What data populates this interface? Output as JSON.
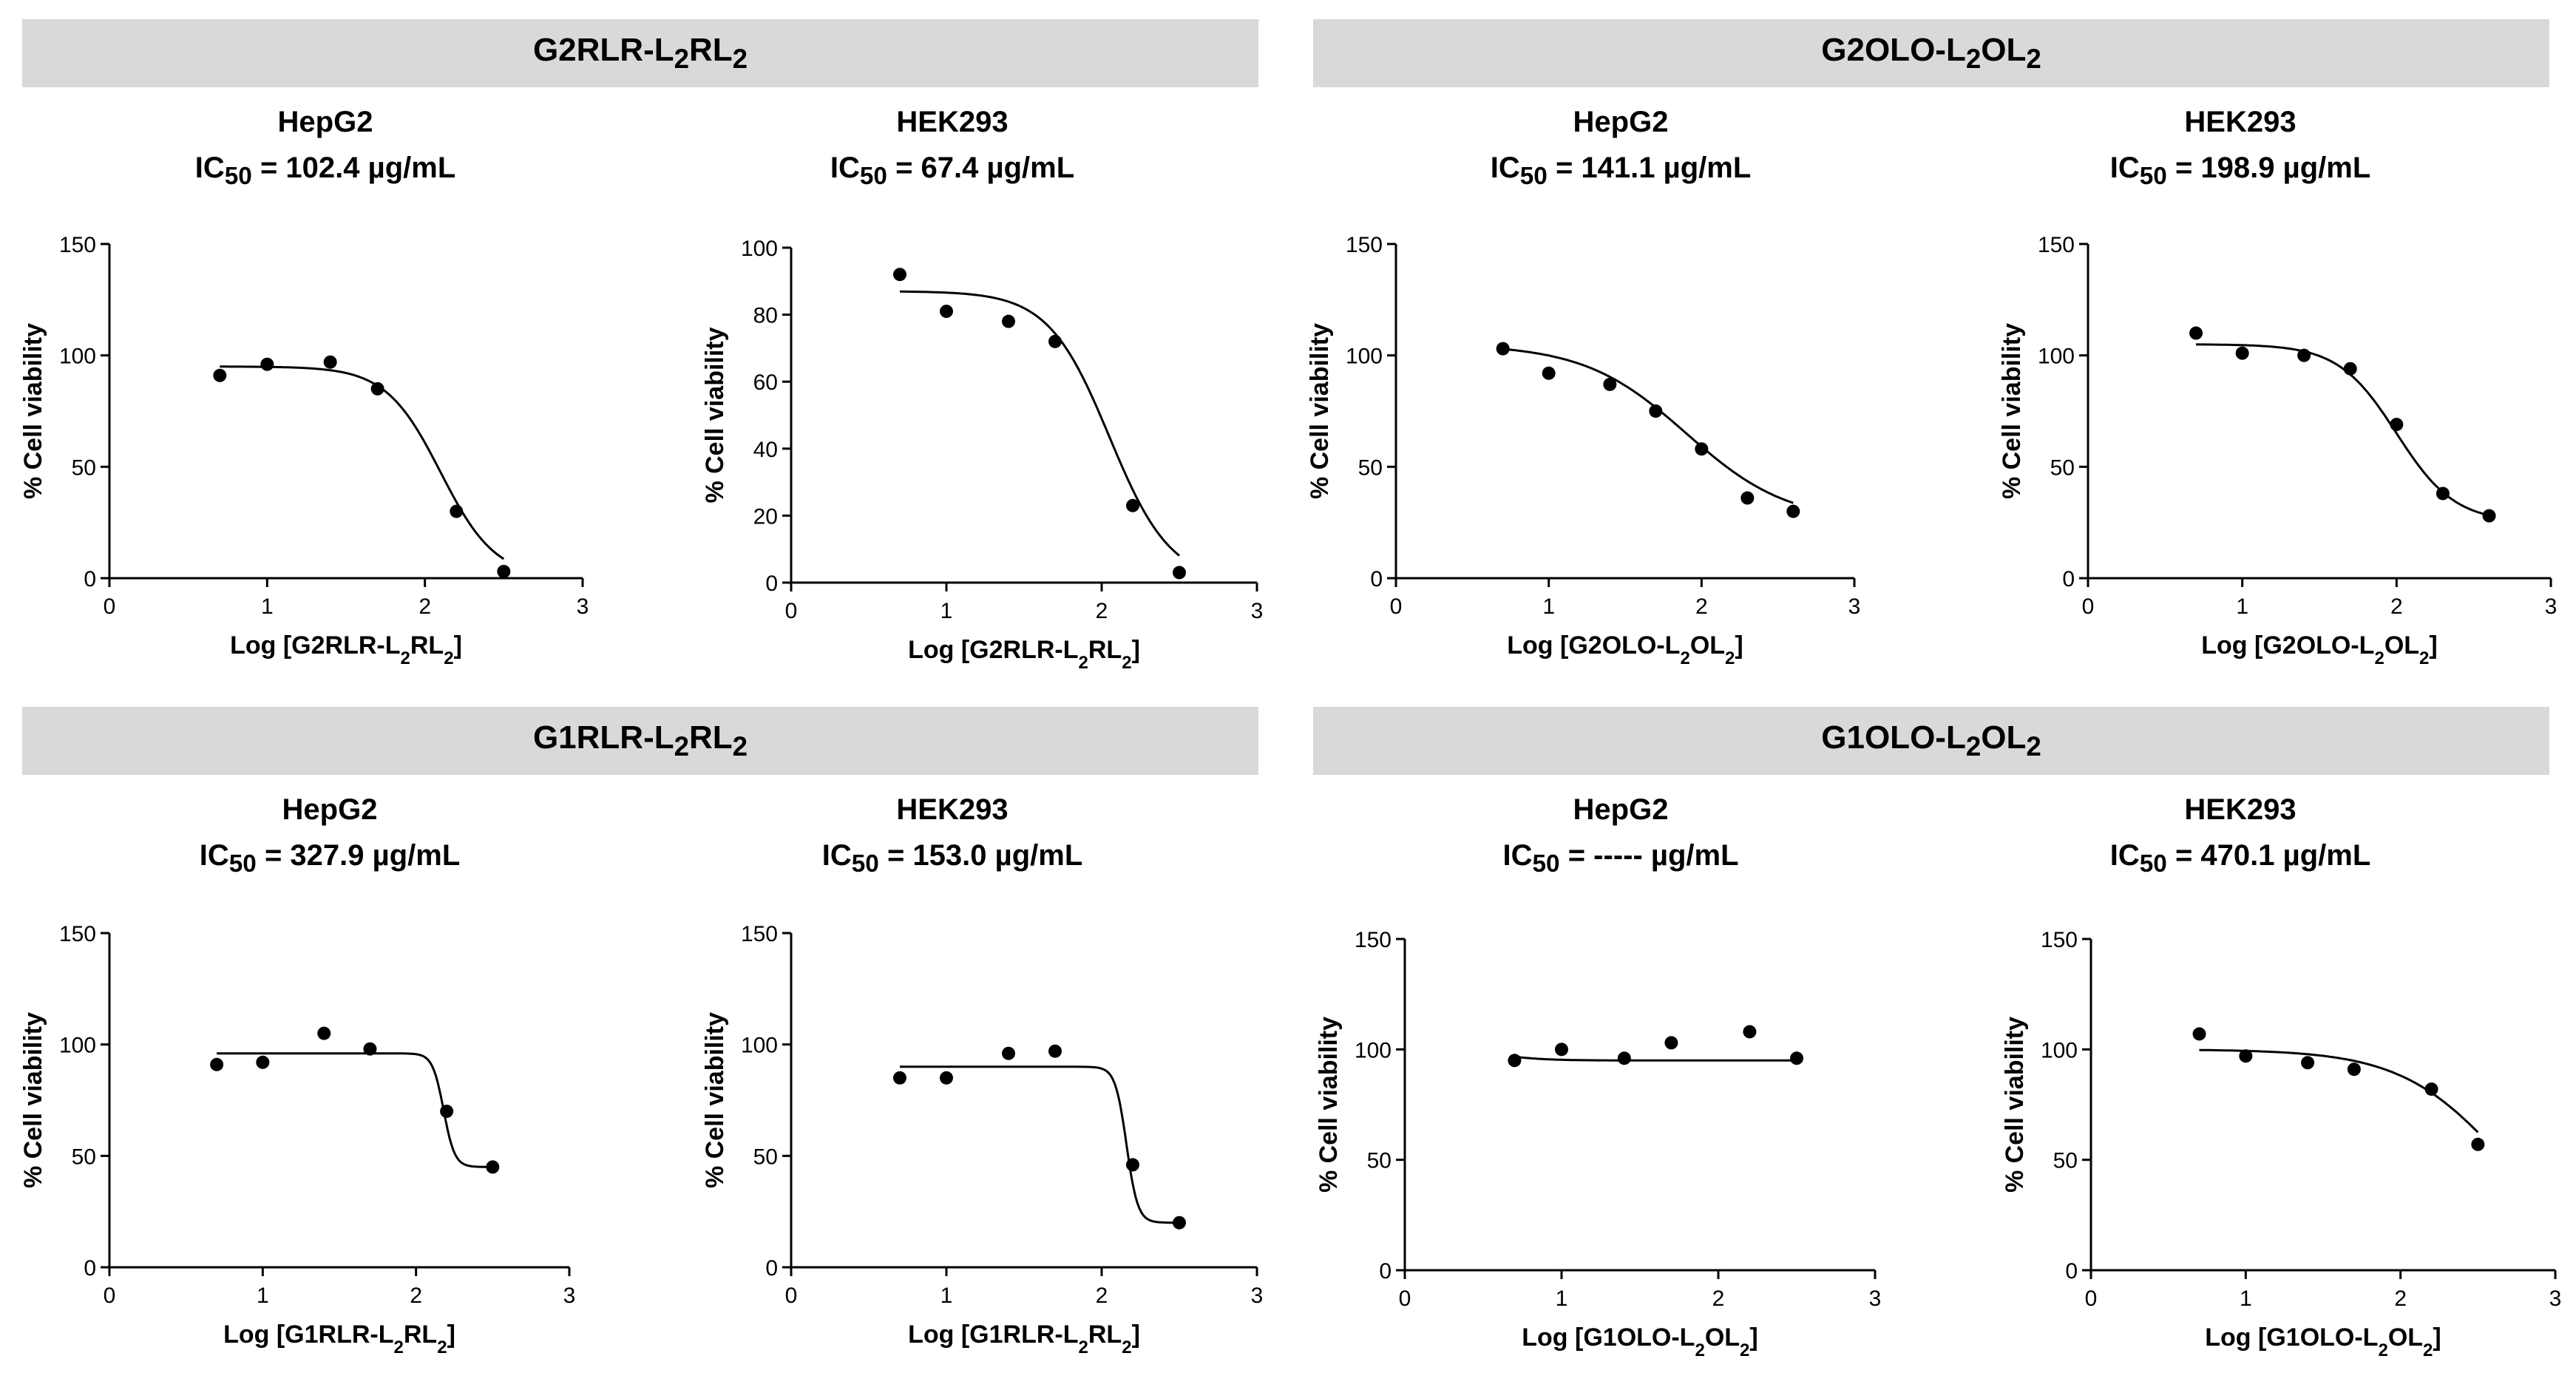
{
  "groups": [
    {
      "label_main": "G2RLR-L",
      "sub1": "2",
      "label_mid": "RL",
      "sub2": "2"
    },
    {
      "label_main": "G2OLO-L",
      "sub1": "2",
      "label_mid": "OL",
      "sub2": "2"
    },
    {
      "label_main": "G1RLR-L",
      "sub1": "2",
      "label_mid": "RL",
      "sub2": "2"
    },
    {
      "label_main": "G1OLO-L",
      "sub1": "2",
      "label_mid": "OL",
      "sub2": "2"
    }
  ],
  "chart_data": [
    {
      "type": "scatter",
      "cell": "HepG2",
      "ic50_value": "102.4",
      "ic50_unit": "µg/mL",
      "ic50_prefix": "IC",
      "ic50_sub": "50",
      "ic50_eq": " = ",
      "ylabel": "% Cell viability",
      "xlabel_main": "Log [G2RLR-L",
      "xlabel_sub1": "2",
      "xlabel_mid": "RL",
      "xlabel_sub2": "2",
      "xlabel_end": "]",
      "xlim": [
        0,
        3
      ],
      "ylim": [
        0,
        150
      ],
      "yticks": [
        0,
        50,
        100,
        150
      ],
      "xticks": [
        0,
        1,
        2,
        3
      ],
      "x": [
        0.7,
        1.0,
        1.4,
        1.7,
        2.2,
        2.5
      ],
      "y": [
        91,
        96,
        97,
        85,
        30,
        3
      ],
      "fit": {
        "top": 95,
        "bottom": 0,
        "logic50": 2.1,
        "hill": -2.5
      }
    },
    {
      "type": "scatter",
      "cell": "HEK293",
      "ic50_value": "67.4",
      "ic50_unit": "µg/mL",
      "ic50_prefix": "IC",
      "ic50_sub": "50",
      "ic50_eq": " = ",
      "ylabel": "% Cell viability",
      "xlabel_main": "Log [G2RLR-L",
      "xlabel_sub1": "2",
      "xlabel_mid": "RL",
      "xlabel_sub2": "2",
      "xlabel_end": "]",
      "xlim": [
        0,
        3
      ],
      "ylim": [
        0,
        100
      ],
      "yticks": [
        0,
        20,
        40,
        60,
        80,
        100
      ],
      "xticks": [
        0,
        1,
        2,
        3
      ],
      "x": [
        0.7,
        1.0,
        1.4,
        1.7,
        2.2,
        2.5
      ],
      "y": [
        92,
        81,
        78,
        72,
        23,
        3
      ],
      "fit": {
        "top": 87,
        "bottom": 0,
        "logic50": 2.05,
        "hill": -2.2
      }
    },
    {
      "type": "scatter",
      "cell": "HepG2",
      "ic50_value": "141.1",
      "ic50_unit": "µg/mL",
      "ic50_prefix": "IC",
      "ic50_sub": "50",
      "ic50_eq": " = ",
      "ylabel": "% Cell viability",
      "xlabel_main": "Log [G2OLO-L",
      "xlabel_sub1": "2",
      "xlabel_mid": "OL",
      "xlabel_sub2": "2",
      "xlabel_end": "]",
      "xlim": [
        0,
        3
      ],
      "ylim": [
        0,
        150
      ],
      "yticks": [
        0,
        50,
        100,
        150
      ],
      "xticks": [
        0,
        1,
        2,
        3
      ],
      "x": [
        0.7,
        1.0,
        1.4,
        1.7,
        2.0,
        2.3,
        2.6
      ],
      "y": [
        103,
        92,
        87,
        75,
        58,
        36,
        30
      ],
      "fit": {
        "top": 105,
        "bottom": 25,
        "logic50": 1.9,
        "hill": -1.3
      }
    },
    {
      "type": "scatter",
      "cell": "HEK293",
      "ic50_value": "198.9",
      "ic50_unit": "µg/mL",
      "ic50_prefix": "IC",
      "ic50_sub": "50",
      "ic50_eq": " = ",
      "ylabel": "% Cell viability",
      "xlabel_main": "Log [G2OLO-L",
      "xlabel_sub1": "2",
      "xlabel_mid": "OL",
      "xlabel_sub2": "2",
      "xlabel_end": "]",
      "xlim": [
        0,
        3
      ],
      "ylim": [
        0,
        150
      ],
      "yticks": [
        0,
        50,
        100,
        150
      ],
      "xticks": [
        0,
        1,
        2,
        3
      ],
      "x": [
        0.7,
        1.0,
        1.4,
        1.7,
        2.0,
        2.3,
        2.6
      ],
      "y": [
        110,
        101,
        100,
        94,
        69,
        38,
        28
      ],
      "fit": {
        "top": 105,
        "bottom": 25,
        "logic50": 2.0,
        "hill": -2.3
      }
    },
    {
      "type": "scatter",
      "cell": "HepG2",
      "ic50_value": "327.9",
      "ic50_unit": "µg/mL",
      "ic50_prefix": "IC",
      "ic50_sub": "50",
      "ic50_eq": " = ",
      "ylabel": "% Cell viability",
      "xlabel_main": "Log [G1RLR-L",
      "xlabel_sub1": "2",
      "xlabel_mid": "RL",
      "xlabel_sub2": "2",
      "xlabel_end": "]",
      "xlim": [
        0,
        3
      ],
      "ylim": [
        0,
        150
      ],
      "yticks": [
        0,
        50,
        100,
        150
      ],
      "xticks": [
        0,
        1,
        2,
        3
      ],
      "x": [
        0.7,
        1.0,
        1.4,
        1.7,
        2.2,
        2.5
      ],
      "y": [
        91,
        92,
        105,
        98,
        70,
        45
      ],
      "fit": {
        "top": 96,
        "bottom": 45,
        "logic50": 2.18,
        "hill": -12
      }
    },
    {
      "type": "scatter",
      "cell": "HEK293",
      "ic50_value": "153.0",
      "ic50_unit": "µg/mL",
      "ic50_prefix": "IC",
      "ic50_sub": "50",
      "ic50_eq": " = ",
      "ylabel": "% Cell viability",
      "xlabel_main": "Log [G1RLR-L",
      "xlabel_sub1": "2",
      "xlabel_mid": "RL",
      "xlabel_sub2": "2",
      "xlabel_end": "]",
      "xlim": [
        0,
        3
      ],
      "ylim": [
        0,
        150
      ],
      "yticks": [
        0,
        50,
        100,
        150
      ],
      "xticks": [
        0,
        1,
        2,
        3
      ],
      "x": [
        0.7,
        1.0,
        1.4,
        1.7,
        2.2,
        2.5
      ],
      "y": [
        85,
        85,
        96,
        97,
        46,
        20
      ],
      "fit": {
        "top": 90,
        "bottom": 20,
        "logic50": 2.16,
        "hill": -12
      }
    },
    {
      "type": "scatter",
      "cell": "HepG2",
      "ic50_value": "-----",
      "ic50_unit": "µg/mL",
      "ic50_prefix": "IC",
      "ic50_sub": "50",
      "ic50_eq": " = ",
      "ylabel": "% Cell viability",
      "xlabel_main": "Log [G1OLO-L",
      "xlabel_sub1": "2",
      "xlabel_mid": "OL",
      "xlabel_sub2": "2",
      "xlabel_end": "]",
      "xlim": [
        0,
        3
      ],
      "ylim": [
        0,
        150
      ],
      "yticks": [
        0,
        50,
        100,
        150
      ],
      "xticks": [
        0,
        1,
        2,
        3
      ],
      "x": [
        0.7,
        1.0,
        1.4,
        1.7,
        2.2,
        2.5
      ],
      "y": [
        95,
        100,
        96,
        103,
        108,
        96
      ],
      "fit": {
        "top": 100,
        "bottom": 95,
        "logic50": 0.6,
        "hill": -3
      }
    },
    {
      "type": "scatter",
      "cell": "HEK293",
      "ic50_value": "470.1",
      "ic50_unit": "µg/mL",
      "ic50_prefix": "IC",
      "ic50_sub": "50",
      "ic50_eq": " = ",
      "ylabel": "% Cell viability",
      "xlabel_main": "Log [G1OLO-L",
      "xlabel_sub1": "2",
      "xlabel_mid": "OL",
      "xlabel_sub2": "2",
      "xlabel_end": "]",
      "xlim": [
        0,
        3
      ],
      "ylim": [
        0,
        150
      ],
      "yticks": [
        0,
        50,
        100,
        150
      ],
      "xticks": [
        0,
        1,
        2,
        3
      ],
      "x": [
        0.7,
        1.0,
        1.4,
        1.7,
        2.2,
        2.5
      ],
      "y": [
        107,
        97,
        94,
        91,
        82,
        57
      ],
      "fit": {
        "top": 100,
        "bottom": 0,
        "logic50": 2.67,
        "hill": -1.3
      }
    }
  ]
}
